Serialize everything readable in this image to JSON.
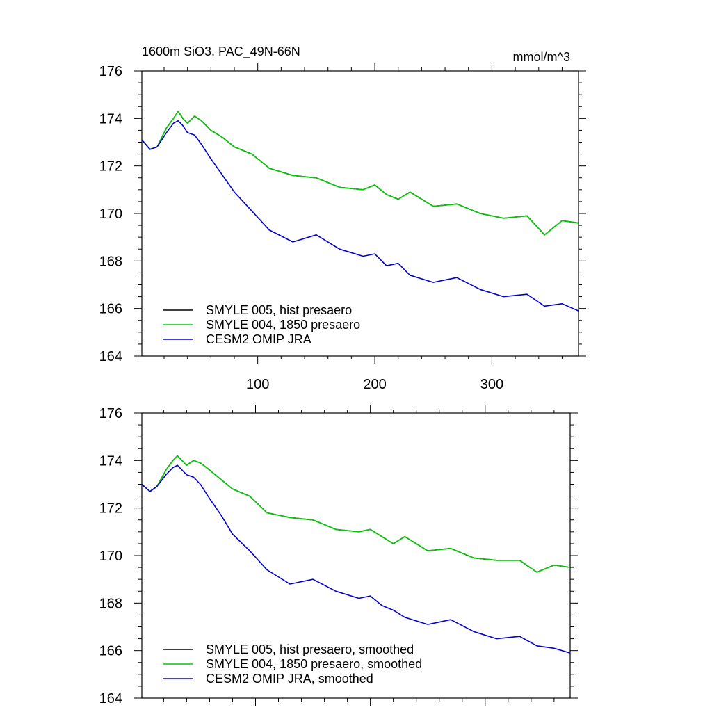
{
  "chart_data": [
    {
      "type": "line",
      "title": "1600m SiO3, PAC_49N-66N",
      "units": "mmol/m^3",
      "xlim": [
        1,
        374
      ],
      "ylim": [
        164,
        176
      ],
      "x_ticks": [
        100,
        200,
        300
      ],
      "y_ticks": [
        164,
        166,
        168,
        170,
        172,
        174,
        176
      ],
      "grid": false,
      "legend_position": "bottom-left",
      "series": [
        {
          "name": "SMYLE 005, hist presaero",
          "color": "#000000",
          "x": [
            1,
            8,
            14,
            22,
            28,
            32,
            36,
            40,
            46,
            52,
            60,
            70,
            80,
            95,
            110,
            130,
            150,
            170,
            190,
            200,
            210,
            220,
            230,
            250,
            270,
            290,
            310,
            330,
            345,
            360,
            374
          ],
          "y": [
            173.1,
            172.7,
            172.8,
            173.6,
            174.0,
            174.3,
            174.0,
            173.8,
            174.1,
            173.9,
            173.5,
            173.2,
            172.8,
            172.5,
            171.9,
            171.6,
            171.5,
            171.1,
            171.0,
            171.2,
            170.8,
            170.6,
            170.9,
            170.3,
            170.4,
            170.0,
            169.8,
            169.9,
            169.1,
            169.7,
            169.6
          ]
        },
        {
          "name": "SMYLE 004, 1850 presaero",
          "color": "#00cc00",
          "x": [
            1,
            8,
            14,
            22,
            28,
            32,
            36,
            40,
            46,
            52,
            60,
            70,
            80,
            95,
            110,
            130,
            150,
            170,
            190,
            200,
            210,
            220,
            230,
            250,
            270,
            290,
            310,
            330,
            345,
            360,
            374
          ],
          "y": [
            173.1,
            172.7,
            172.8,
            173.6,
            174.0,
            174.3,
            174.0,
            173.8,
            174.1,
            173.9,
            173.5,
            173.2,
            172.8,
            172.5,
            171.9,
            171.6,
            171.5,
            171.1,
            171.0,
            171.2,
            170.8,
            170.6,
            170.9,
            170.3,
            170.4,
            170.0,
            169.8,
            169.9,
            169.1,
            169.7,
            169.6
          ]
        },
        {
          "name": "CESM2 OMIP JRA",
          "color": "#0000cc",
          "x": [
            1,
            8,
            14,
            22,
            28,
            32,
            36,
            40,
            46,
            52,
            60,
            70,
            80,
            95,
            110,
            130,
            150,
            170,
            190,
            200,
            210,
            220,
            230,
            250,
            270,
            290,
            310,
            330,
            345,
            360,
            374
          ],
          "y": [
            173.1,
            172.7,
            172.8,
            173.4,
            173.8,
            173.9,
            173.7,
            173.4,
            173.3,
            172.9,
            172.3,
            171.6,
            170.9,
            170.1,
            169.3,
            168.8,
            169.1,
            168.5,
            168.2,
            168.3,
            167.8,
            167.9,
            167.4,
            167.1,
            167.3,
            166.8,
            166.5,
            166.6,
            166.1,
            166.2,
            165.9
          ]
        }
      ]
    },
    {
      "type": "line",
      "xlim": [
        1,
        374
      ],
      "ylim": [
        164,
        176
      ],
      "y_ticks": [
        164,
        166,
        168,
        170,
        172,
        174,
        176
      ],
      "grid": false,
      "legend_position": "bottom-left",
      "series": [
        {
          "name": "SMYLE 005, hist presaero, smoothed",
          "color": "#000000",
          "x": [
            1,
            8,
            14,
            22,
            28,
            32,
            36,
            40,
            46,
            52,
            60,
            70,
            80,
            95,
            110,
            130,
            150,
            170,
            190,
            200,
            210,
            220,
            230,
            250,
            270,
            290,
            310,
            330,
            345,
            360,
            374
          ],
          "y": [
            173.0,
            172.7,
            172.9,
            173.6,
            174.0,
            174.2,
            174.0,
            173.8,
            174.0,
            173.9,
            173.6,
            173.2,
            172.8,
            172.5,
            171.8,
            171.6,
            171.5,
            171.1,
            171.0,
            171.1,
            170.8,
            170.5,
            170.8,
            170.2,
            170.3,
            169.9,
            169.8,
            169.8,
            169.3,
            169.6,
            169.5
          ]
        },
        {
          "name": "SMYLE 004, 1850 presaero, smoothed",
          "color": "#00cc00",
          "x": [
            1,
            8,
            14,
            22,
            28,
            32,
            36,
            40,
            46,
            52,
            60,
            70,
            80,
            95,
            110,
            130,
            150,
            170,
            190,
            200,
            210,
            220,
            230,
            250,
            270,
            290,
            310,
            330,
            345,
            360,
            374
          ],
          "y": [
            173.0,
            172.7,
            172.9,
            173.6,
            174.0,
            174.2,
            174.0,
            173.8,
            174.0,
            173.9,
            173.6,
            173.2,
            172.8,
            172.5,
            171.8,
            171.6,
            171.5,
            171.1,
            171.0,
            171.1,
            170.8,
            170.5,
            170.8,
            170.2,
            170.3,
            169.9,
            169.8,
            169.8,
            169.3,
            169.6,
            169.5
          ]
        },
        {
          "name": "CESM2 OMIP JRA, smoothed",
          "color": "#0000cc",
          "x": [
            1,
            8,
            14,
            22,
            28,
            32,
            36,
            40,
            46,
            52,
            60,
            70,
            80,
            95,
            110,
            130,
            150,
            170,
            190,
            200,
            210,
            220,
            230,
            250,
            270,
            290,
            310,
            330,
            345,
            360,
            374
          ],
          "y": [
            173.0,
            172.7,
            172.9,
            173.4,
            173.7,
            173.8,
            173.6,
            173.4,
            173.3,
            173.0,
            172.4,
            171.7,
            170.9,
            170.2,
            169.4,
            168.8,
            169.0,
            168.5,
            168.2,
            168.3,
            167.9,
            167.7,
            167.4,
            167.1,
            167.3,
            166.8,
            166.5,
            166.6,
            166.2,
            166.1,
            165.9
          ]
        }
      ]
    }
  ]
}
